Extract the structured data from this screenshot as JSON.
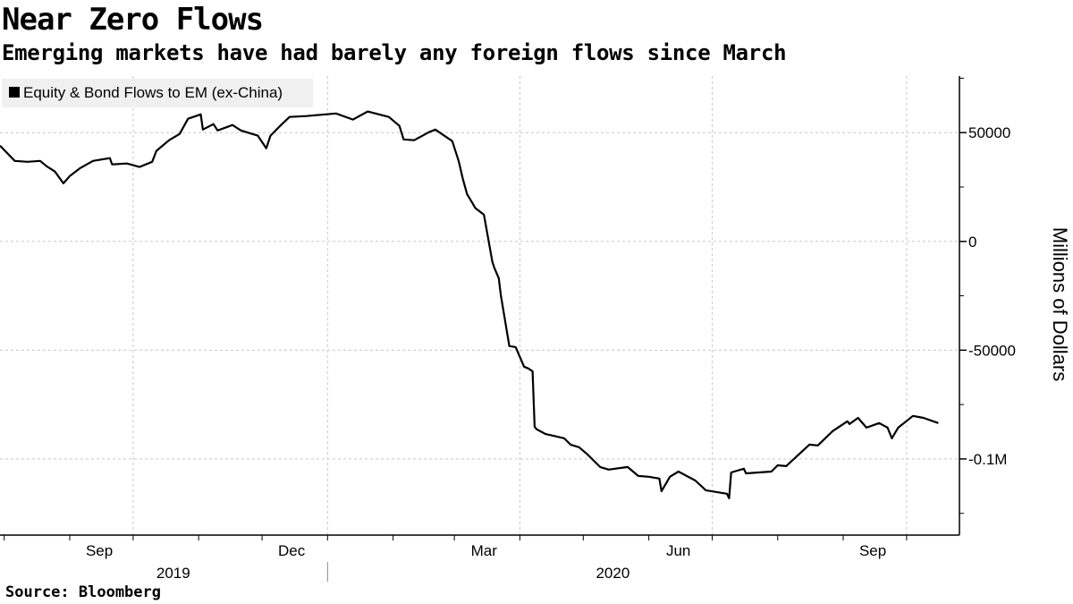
{
  "header": {
    "title": "Near Zero Flows",
    "subtitle": "Emerging markets have had barely any foreign flows since March"
  },
  "footer": {
    "source": "Source: Bloomberg"
  },
  "chart_data": {
    "type": "line",
    "title": "Near Zero Flows",
    "subtitle": "Emerging markets have had barely any foreign flows since March",
    "xlabel": "",
    "ylabel": "Millions of Dollars",
    "y_axis_side": "right",
    "xlim": [
      "2019-07-30",
      "2020-10-26"
    ],
    "ylim": [
      -135000,
      76000
    ],
    "grid": true,
    "legend_placement": "top-left",
    "line_color": "#000000",
    "legend_bg": "#f0f0f0",
    "y_ticks": [
      {
        "value": 50000,
        "label": "50000"
      },
      {
        "value": 0,
        "label": "0"
      },
      {
        "value": -50000,
        "label": "-50000"
      },
      {
        "value": -100000,
        "label": "-0.1M"
      }
    ],
    "y_minor_ticks": [
      75000,
      25000,
      -25000,
      -75000,
      -125000
    ],
    "x_gridlines": [
      "2019-10-01",
      "2020-01-01",
      "2020-04-01",
      "2020-07-01",
      "2020-10-01"
    ],
    "x_month_ticks": [
      "2019-08-01",
      "2019-09-01",
      "2019-10-01",
      "2019-11-01",
      "2019-12-01",
      "2020-01-01",
      "2020-02-01",
      "2020-03-01",
      "2020-04-01",
      "2020-05-01",
      "2020-06-01",
      "2020-07-01",
      "2020-08-01",
      "2020-09-01",
      "2020-10-01"
    ],
    "x_labels": [
      {
        "date": "2019-09-15",
        "label": "Sep"
      },
      {
        "date": "2019-12-15",
        "label": "Dec"
      },
      {
        "date": "2020-03-15",
        "label": "Mar"
      },
      {
        "date": "2020-06-15",
        "label": "Jun"
      },
      {
        "date": "2020-09-15",
        "label": "Sep"
      }
    ],
    "year_labels": [
      {
        "date": "2019-10-20",
        "label": "2019"
      },
      {
        "date": "2020-05-15",
        "label": "2020"
      }
    ],
    "year_separator": "2020-01-01",
    "series": [
      {
        "name": "Equity & Bond Flows to EM (ex-China)",
        "points": [
          [
            "2019-07-30",
            44000
          ],
          [
            "2019-08-06",
            37000
          ],
          [
            "2019-08-12",
            36600
          ],
          [
            "2019-08-18",
            37000
          ],
          [
            "2019-08-21",
            34600
          ],
          [
            "2019-08-25",
            32100
          ],
          [
            "2019-08-29",
            26700
          ],
          [
            "2019-09-01",
            30000
          ],
          [
            "2019-09-06",
            33700
          ],
          [
            "2019-09-12",
            37000
          ],
          [
            "2019-09-20",
            38300
          ],
          [
            "2019-09-21",
            35400
          ],
          [
            "2019-09-28",
            35800
          ],
          [
            "2019-10-04",
            34200
          ],
          [
            "2019-10-10",
            36600
          ],
          [
            "2019-10-12",
            41600
          ],
          [
            "2019-10-18",
            46500
          ],
          [
            "2019-10-23",
            49400
          ],
          [
            "2019-10-27",
            56400
          ],
          [
            "2019-11-02",
            58400
          ],
          [
            "2019-11-03",
            51400
          ],
          [
            "2019-11-08",
            53900
          ],
          [
            "2019-11-10",
            51000
          ],
          [
            "2019-11-17",
            53500
          ],
          [
            "2019-11-21",
            51000
          ],
          [
            "2019-11-29",
            48600
          ],
          [
            "2019-12-03",
            42800
          ],
          [
            "2019-12-05",
            48600
          ],
          [
            "2019-12-10",
            53500
          ],
          [
            "2019-12-14",
            57200
          ],
          [
            "2019-12-22",
            57600
          ],
          [
            "2020-01-05",
            58800
          ],
          [
            "2020-01-13",
            56000
          ],
          [
            "2020-01-20",
            59700
          ],
          [
            "2020-01-30",
            57200
          ],
          [
            "2020-02-04",
            53100
          ],
          [
            "2020-02-06",
            46900
          ],
          [
            "2020-02-11",
            46500
          ],
          [
            "2020-02-18",
            50200
          ],
          [
            "2020-02-21",
            51400
          ],
          [
            "2020-02-24",
            49400
          ],
          [
            "2020-02-29",
            46100
          ],
          [
            "2020-03-03",
            37000
          ],
          [
            "2020-03-05",
            28800
          ],
          [
            "2020-03-07",
            21800
          ],
          [
            "2020-03-11",
            15200
          ],
          [
            "2020-03-15",
            12300
          ],
          [
            "2020-03-19",
            -9500
          ],
          [
            "2020-03-20",
            -12300
          ],
          [
            "2020-03-22",
            -16900
          ],
          [
            "2020-03-23",
            -24700
          ],
          [
            "2020-03-27",
            -48100
          ],
          [
            "2020-03-30",
            -48600
          ],
          [
            "2020-04-03",
            -57600
          ],
          [
            "2020-04-05",
            -58400
          ],
          [
            "2020-04-07",
            -59700
          ],
          [
            "2020-04-08",
            -85200
          ],
          [
            "2020-04-09",
            -86400
          ],
          [
            "2020-04-13",
            -88500
          ],
          [
            "2020-04-22",
            -90500
          ],
          [
            "2020-04-25",
            -93400
          ],
          [
            "2020-04-29",
            -94600
          ],
          [
            "2020-05-03",
            -97900
          ],
          [
            "2020-05-06",
            -100800
          ],
          [
            "2020-05-09",
            -103700
          ],
          [
            "2020-05-13",
            -104900
          ],
          [
            "2020-05-22",
            -103700
          ],
          [
            "2020-05-27",
            -107800
          ],
          [
            "2020-06-01",
            -108200
          ],
          [
            "2020-06-06",
            -109000
          ],
          [
            "2020-06-07",
            -114800
          ],
          [
            "2020-06-11",
            -108200
          ],
          [
            "2020-06-15",
            -105800
          ],
          [
            "2020-06-23",
            -109900
          ],
          [
            "2020-06-28",
            -114400
          ],
          [
            "2020-07-08",
            -116000
          ],
          [
            "2020-07-09",
            -118100
          ],
          [
            "2020-07-10",
            -106200
          ],
          [
            "2020-07-16",
            -104500
          ],
          [
            "2020-07-17",
            -106600
          ],
          [
            "2020-07-29",
            -105800
          ],
          [
            "2020-08-01",
            -102900
          ],
          [
            "2020-08-05",
            -103300
          ],
          [
            "2020-08-11",
            -97900
          ],
          [
            "2020-08-16",
            -93400
          ],
          [
            "2020-08-20",
            -93800
          ],
          [
            "2020-08-27",
            -87200
          ],
          [
            "2020-09-03",
            -82700
          ],
          [
            "2020-09-04",
            -83900
          ],
          [
            "2020-09-08",
            -81100
          ],
          [
            "2020-09-12",
            -85600
          ],
          [
            "2020-09-18",
            -83500
          ],
          [
            "2020-09-22",
            -85600
          ],
          [
            "2020-09-24",
            -90500
          ],
          [
            "2020-09-27",
            -85600
          ],
          [
            "2020-10-04",
            -80200
          ],
          [
            "2020-10-09",
            -81100
          ],
          [
            "2020-10-16",
            -83500
          ]
        ]
      }
    ]
  }
}
